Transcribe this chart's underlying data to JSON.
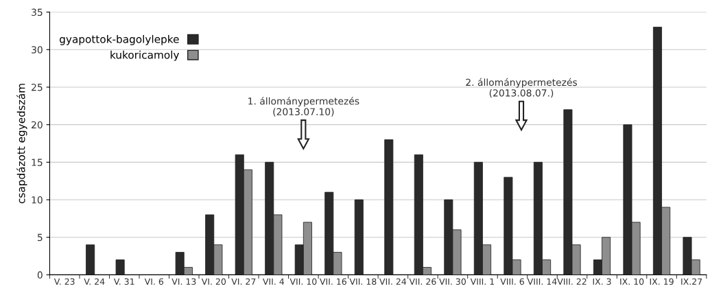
{
  "chart_data": {
    "type": "bar",
    "ylabel": "csapdázott egyedszám",
    "categories": [
      "V. 23",
      "V. 24",
      "V. 31",
      "VI. 6",
      "VI. 13",
      "VI. 20",
      "VI. 27",
      "VII. 4",
      "VII. 10",
      "VII. 16",
      "VII. 18",
      "VII. 24",
      "VII. 26",
      "VII. 30",
      "VIII. 1",
      "VIII. 6",
      "VIII. 14",
      "VIII. 22",
      "IX. 3",
      "IX. 10",
      "IX. 19",
      "IX.27"
    ],
    "series": [
      {
        "name": "gyapottok-bagolylepke",
        "color": "#2a2a2a",
        "values": [
          0,
          4,
          2,
          0,
          3,
          8,
          16,
          15,
          4,
          11,
          10,
          18,
          16,
          10,
          15,
          13,
          15,
          22,
          2,
          20,
          33,
          5
        ]
      },
      {
        "name": "kukoricamoly",
        "color": "#8e8e8e",
        "values": [
          0,
          0,
          0,
          0,
          1,
          4,
          14,
          8,
          7,
          3,
          0,
          0,
          1,
          6,
          4,
          2,
          2,
          4,
          5,
          7,
          9,
          2
        ]
      }
    ],
    "ylim": [
      0,
      35
    ],
    "yticks": [
      0,
      5,
      10,
      15,
      20,
      25,
      30,
      35
    ],
    "annotations": [
      "1. állománypermetezés\n(2013.07.10)",
      "2. állománypermetezés\n(2013.08.07.)"
    ],
    "grid": "y",
    "legend": "top left"
  }
}
